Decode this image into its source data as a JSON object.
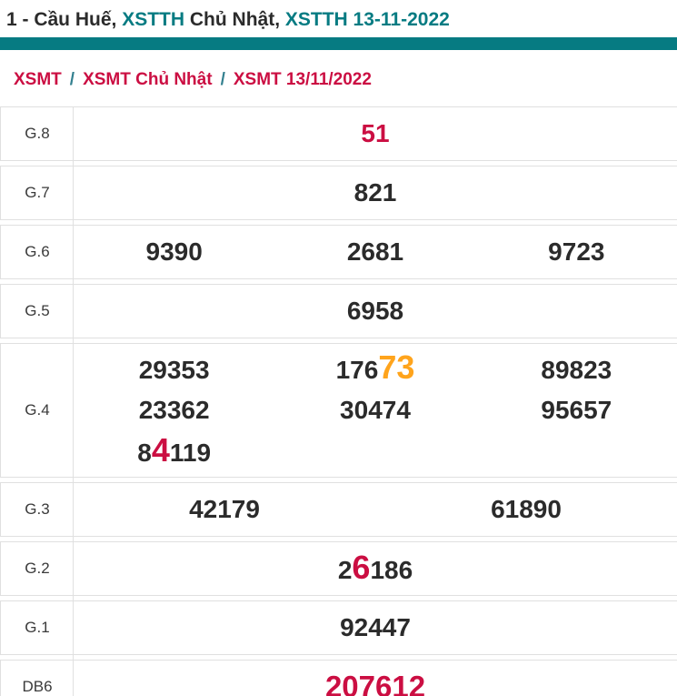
{
  "colors": {
    "teal": "#067b82",
    "red": "#cb0e42",
    "orange": "#ffa41c",
    "dark_text": "#2b2b2b",
    "border": "#e0e0e0"
  },
  "header": {
    "title_parts": [
      {
        "text": "1 - Cầu Huế, ",
        "color": "dark"
      },
      {
        "text": "XSTTH",
        "color": "teal"
      },
      {
        "text": " Chủ Nhật, ",
        "color": "dark"
      },
      {
        "text": "XSTTH 13-11-2022",
        "color": "teal"
      }
    ]
  },
  "breadcrumb": {
    "separator": "/",
    "items": [
      {
        "label": "XSMT"
      },
      {
        "label": "XSMT Chủ Nhật"
      },
      {
        "label": "XSMT 13/11/2022"
      }
    ]
  },
  "results_table": {
    "rows": [
      {
        "label": "G.8",
        "emphasis": false,
        "lines": [
          [
            {
              "segs": [
                {
                  "t": "51",
                  "c": "red"
                }
              ]
            }
          ]
        ]
      },
      {
        "label": "G.7",
        "emphasis": false,
        "lines": [
          [
            {
              "segs": [
                {
                  "t": "821"
                }
              ]
            }
          ]
        ]
      },
      {
        "label": "G.6",
        "emphasis": false,
        "lines": [
          [
            {
              "segs": [
                {
                  "t": "9390"
                }
              ]
            },
            {
              "segs": [
                {
                  "t": "2681"
                }
              ]
            },
            {
              "segs": [
                {
                  "t": "9723"
                }
              ]
            }
          ]
        ]
      },
      {
        "label": "G.5",
        "emphasis": false,
        "lines": [
          [
            {
              "segs": [
                {
                  "t": "6958"
                }
              ]
            }
          ]
        ]
      },
      {
        "label": "G.4",
        "emphasis": false,
        "lines": [
          [
            {
              "segs": [
                {
                  "t": "29353"
                }
              ]
            },
            {
              "segs": [
                {
                  "t": "176"
                },
                {
                  "t": "73",
                  "c": "orange-big"
                }
              ]
            },
            {
              "segs": [
                {
                  "t": "89823"
                }
              ]
            }
          ],
          [
            {
              "segs": [
                {
                  "t": "23362"
                }
              ]
            },
            {
              "segs": [
                {
                  "t": "30474"
                }
              ]
            },
            {
              "segs": [
                {
                  "t": "95657"
                }
              ]
            }
          ],
          [
            {
              "segs": [
                {
                  "t": "8"
                },
                {
                  "t": "4",
                  "c": "red-big"
                },
                {
                  "t": "119"
                }
              ]
            },
            null,
            null
          ]
        ]
      },
      {
        "label": "G.3",
        "emphasis": false,
        "lines": [
          [
            {
              "segs": [
                {
                  "t": "42179"
                }
              ]
            },
            {
              "segs": [
                {
                  "t": "61890"
                }
              ]
            }
          ]
        ]
      },
      {
        "label": "G.2",
        "emphasis": false,
        "lines": [
          [
            {
              "segs": [
                {
                  "t": "2"
                },
                {
                  "t": "6",
                  "c": "red-big"
                },
                {
                  "t": "186"
                }
              ]
            }
          ]
        ]
      },
      {
        "label": "G.1",
        "emphasis": false,
        "lines": [
          [
            {
              "segs": [
                {
                  "t": "92447"
                }
              ]
            }
          ]
        ]
      },
      {
        "label": "DB6",
        "emphasis": true,
        "lines": [
          [
            {
              "segs": [
                {
                  "t": "207612",
                  "c": "red"
                }
              ]
            }
          ]
        ]
      }
    ]
  }
}
